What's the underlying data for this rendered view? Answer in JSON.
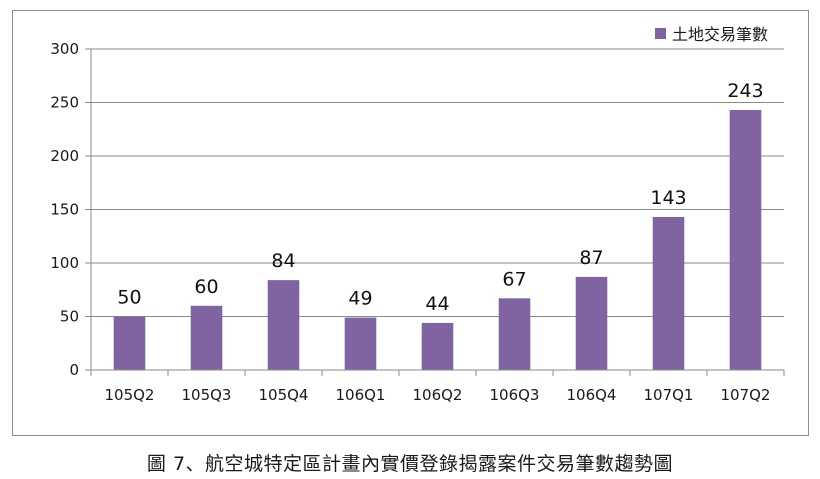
{
  "caption": "圖 7、航空城特定區計畫內實價登錄揭露案件交易筆數趨勢圖",
  "chart_data": {
    "type": "bar",
    "categories": [
      "105Q2",
      "105Q3",
      "105Q4",
      "106Q1",
      "106Q2",
      "106Q3",
      "106Q4",
      "107Q1",
      "107Q2"
    ],
    "series": [
      {
        "name": "土地交易筆數",
        "values": [
          50,
          60,
          84,
          49,
          44,
          67,
          87,
          143,
          243
        ],
        "color": "#8064a2"
      }
    ],
    "ylim": [
      0,
      300
    ],
    "yticks": [
      0,
      50,
      100,
      150,
      200,
      250,
      300
    ],
    "grid": true,
    "legend": "top-right",
    "data_labels": true
  }
}
